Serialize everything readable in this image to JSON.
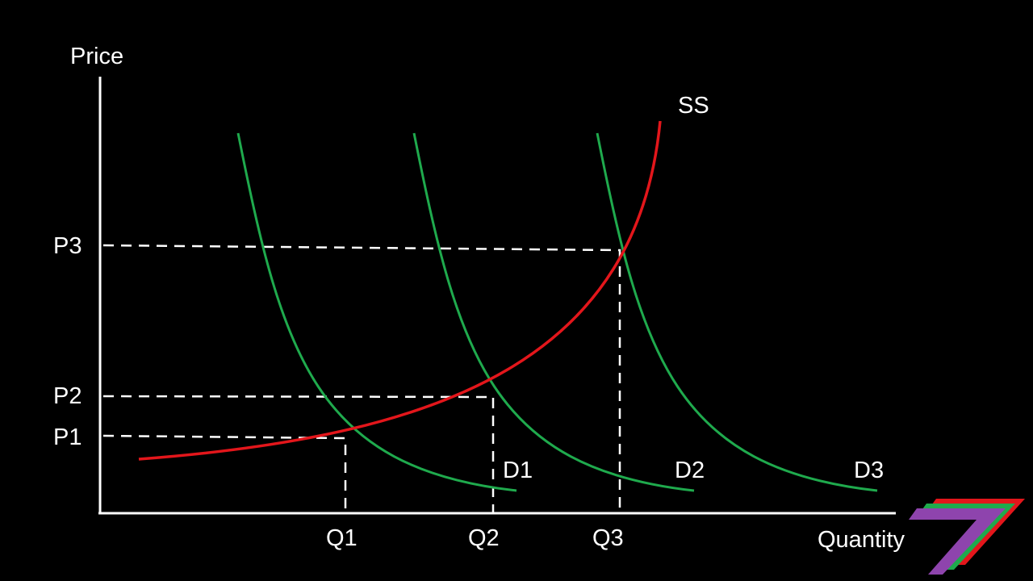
{
  "axes": {
    "y_label": "Price",
    "x_label": "Quantity"
  },
  "price_labels": [
    "P1",
    "P2",
    "P3"
  ],
  "quantity_labels": [
    "Q1",
    "Q2",
    "Q3"
  ],
  "supply": {
    "name": "SS",
    "color": "#e3161b"
  },
  "demand_curves": [
    {
      "name": "D1",
      "color": "#1faa4d"
    },
    {
      "name": "D2",
      "color": "#1faa4d"
    },
    {
      "name": "D3",
      "color": "#1faa4d"
    }
  ],
  "logo": {
    "icon": "stacked-seven-logo-icon",
    "colors": [
      "#e3161b",
      "#1faa4d",
      "#8e44ad"
    ]
  }
}
